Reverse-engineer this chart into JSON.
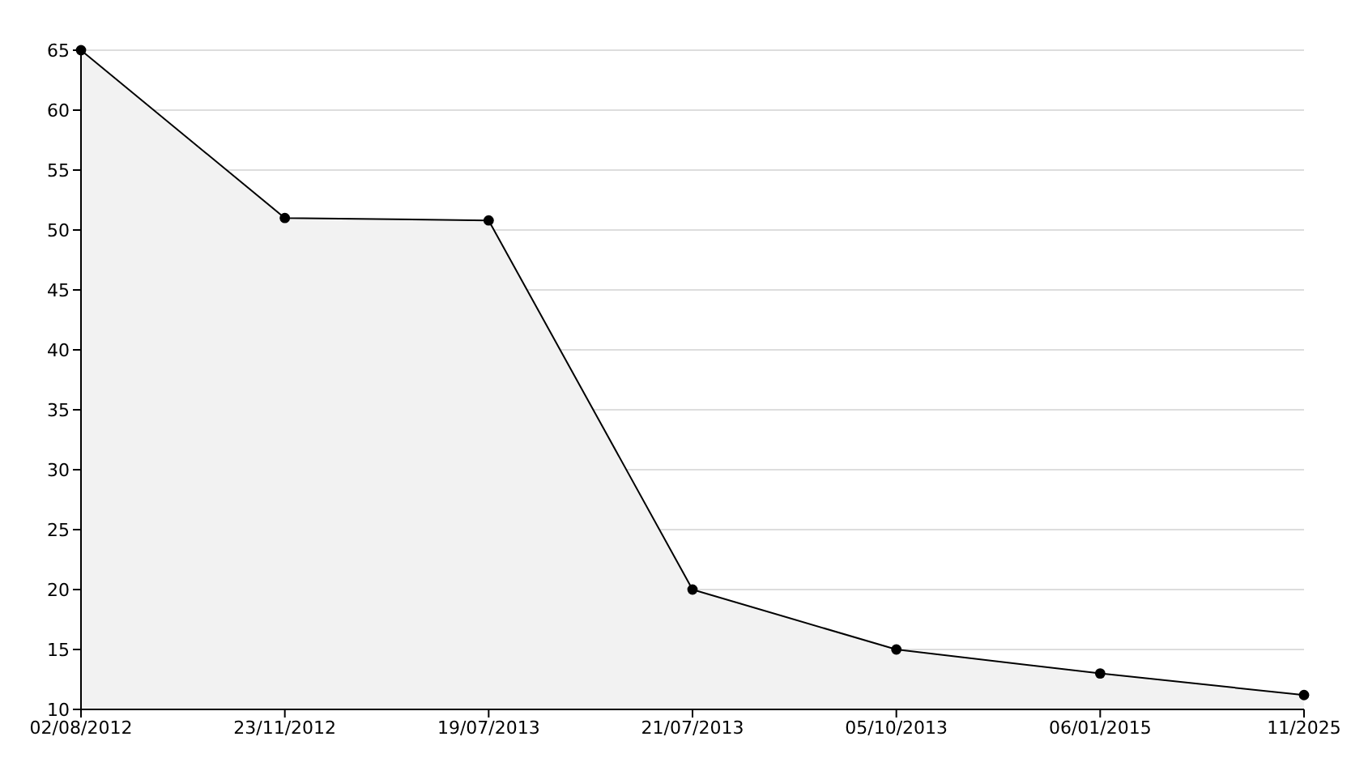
{
  "chart_data": {
    "type": "area",
    "categories": [
      "02/08/2012",
      "23/11/2012",
      "19/07/2013",
      "21/07/2013",
      "05/10/2013",
      "06/01/2015",
      "11/2025"
    ],
    "series": [
      {
        "color": "#000000",
        "values": [
          65,
          51,
          50.8,
          20,
          15,
          13,
          11.2
        ]
      }
    ],
    "ylim": [
      10,
      65
    ],
    "yticks": [
      10,
      15,
      20,
      25,
      30,
      35,
      40,
      45,
      50,
      55,
      60,
      65
    ],
    "grid": "y",
    "marker": "circle",
    "line_style": "solid",
    "legend": false
  }
}
